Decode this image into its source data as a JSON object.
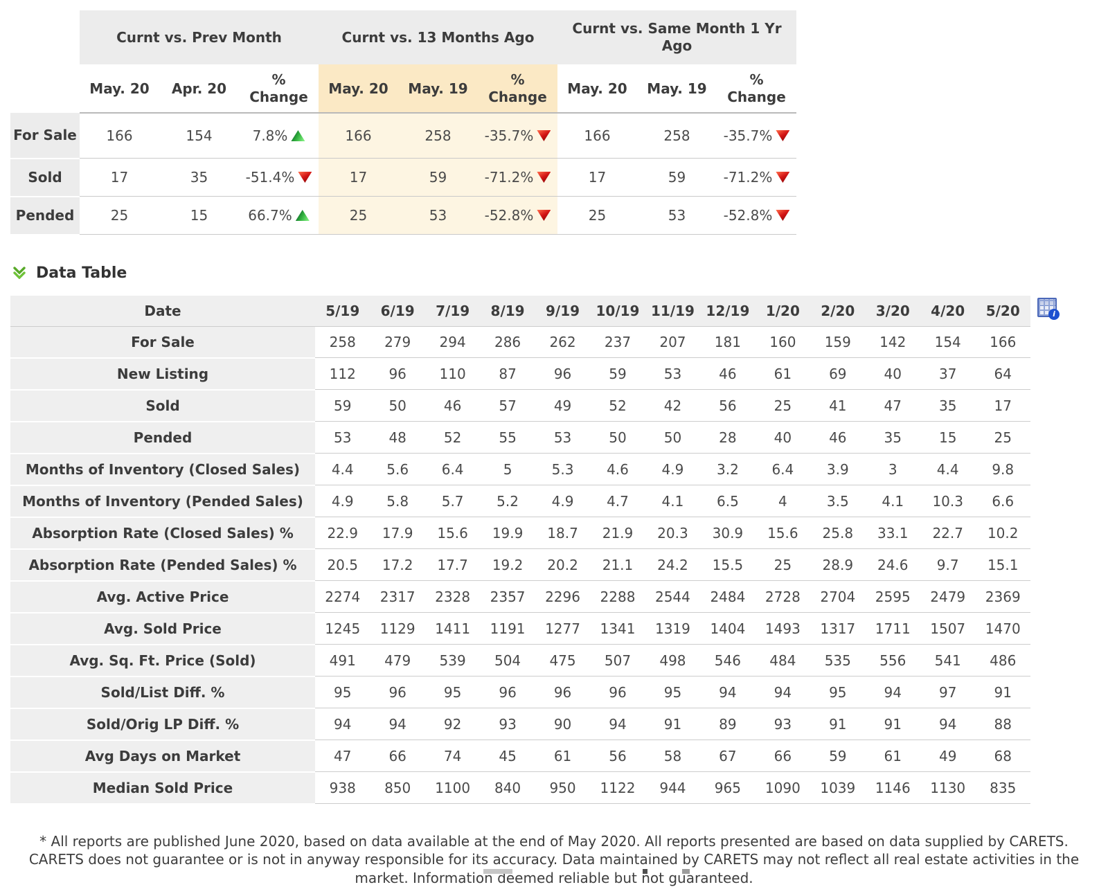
{
  "comparison_table": {
    "groups": [
      {
        "title": "Curnt vs. Prev Month",
        "columns": [
          "May. 20",
          "Apr. 20",
          "%\nChange"
        ],
        "highlight": false
      },
      {
        "title": "Curnt vs. 13 Months Ago",
        "columns": [
          "May. 20",
          "May. 19",
          "%\nChange"
        ],
        "highlight": true
      },
      {
        "title": "Curnt vs. Same Month 1 Yr\nAgo",
        "columns": [
          "May. 20",
          "May. 19",
          "%\nChange"
        ],
        "highlight": false
      }
    ],
    "rows": [
      {
        "label": "For Sale",
        "cells": [
          {
            "values": [
              "166",
              "154"
            ],
            "change": "7.8%",
            "dir": "up"
          },
          {
            "values": [
              "166",
              "258"
            ],
            "change": "-35.7%",
            "dir": "down"
          },
          {
            "values": [
              "166",
              "258"
            ],
            "change": "-35.7%",
            "dir": "down"
          }
        ]
      },
      {
        "label": "Sold",
        "cells": [
          {
            "values": [
              "17",
              "35"
            ],
            "change": "-51.4%",
            "dir": "down"
          },
          {
            "values": [
              "17",
              "59"
            ],
            "change": "-71.2%",
            "dir": "down"
          },
          {
            "values": [
              "17",
              "59"
            ],
            "change": "-71.2%",
            "dir": "down"
          }
        ]
      },
      {
        "label": "Pended",
        "cells": [
          {
            "values": [
              "25",
              "15"
            ],
            "change": "66.7%",
            "dir": "up"
          },
          {
            "values": [
              "25",
              "53"
            ],
            "change": "-52.8%",
            "dir": "down"
          },
          {
            "values": [
              "25",
              "53"
            ],
            "change": "-52.8%",
            "dir": "down"
          }
        ]
      }
    ]
  },
  "section": {
    "title": "Data Table"
  },
  "data_table": {
    "date_label": "Date",
    "dates": [
      "5/19",
      "6/19",
      "7/19",
      "8/19",
      "9/19",
      "10/19",
      "11/19",
      "12/19",
      "1/20",
      "2/20",
      "3/20",
      "4/20",
      "5/20"
    ],
    "rows": [
      {
        "label": "For Sale",
        "values": [
          258,
          279,
          294,
          286,
          262,
          237,
          207,
          181,
          160,
          159,
          142,
          154,
          166
        ]
      },
      {
        "label": "New Listing",
        "values": [
          112,
          96,
          110,
          87,
          96,
          59,
          53,
          46,
          61,
          69,
          40,
          37,
          64
        ]
      },
      {
        "label": "Sold",
        "values": [
          59,
          50,
          46,
          57,
          49,
          52,
          42,
          56,
          25,
          41,
          47,
          35,
          17
        ]
      },
      {
        "label": "Pended",
        "values": [
          53,
          48,
          52,
          55,
          53,
          50,
          50,
          28,
          40,
          46,
          35,
          15,
          25
        ]
      },
      {
        "label": "Months of Inventory (Closed Sales)",
        "values": [
          4.4,
          5.6,
          6.4,
          5,
          5.3,
          4.6,
          4.9,
          3.2,
          6.4,
          3.9,
          3,
          4.4,
          9.8
        ]
      },
      {
        "label": "Months of Inventory (Pended Sales)",
        "values": [
          4.9,
          5.8,
          5.7,
          5.2,
          4.9,
          4.7,
          4.1,
          6.5,
          4,
          3.5,
          4.1,
          10.3,
          6.6
        ]
      },
      {
        "label": "Absorption Rate (Closed Sales) %",
        "values": [
          22.9,
          17.9,
          15.6,
          19.9,
          18.7,
          21.9,
          20.3,
          30.9,
          15.6,
          25.8,
          33.1,
          22.7,
          10.2
        ]
      },
      {
        "label": "Absorption Rate (Pended Sales) %",
        "values": [
          20.5,
          17.2,
          17.7,
          19.2,
          20.2,
          21.1,
          24.2,
          15.5,
          25,
          28.9,
          24.6,
          9.7,
          15.1
        ]
      },
      {
        "label": "Avg. Active Price",
        "values": [
          2274,
          2317,
          2328,
          2357,
          2296,
          2288,
          2544,
          2484,
          2728,
          2704,
          2595,
          2479,
          2369
        ]
      },
      {
        "label": "Avg. Sold Price",
        "values": [
          1245,
          1129,
          1411,
          1191,
          1277,
          1341,
          1319,
          1404,
          1493,
          1317,
          1711,
          1507,
          1470
        ]
      },
      {
        "label": "Avg. Sq. Ft. Price (Sold)",
        "values": [
          491,
          479,
          539,
          504,
          475,
          507,
          498,
          546,
          484,
          535,
          556,
          541,
          486
        ]
      },
      {
        "label": "Sold/List Diff. %",
        "values": [
          95,
          96,
          95,
          96,
          96,
          96,
          95,
          94,
          94,
          95,
          94,
          97,
          91
        ]
      },
      {
        "label": "Sold/Orig LP Diff. %",
        "values": [
          94,
          94,
          92,
          93,
          90,
          94,
          91,
          89,
          93,
          91,
          91,
          94,
          88
        ]
      },
      {
        "label": "Avg Days on Market",
        "values": [
          47,
          66,
          74,
          45,
          61,
          56,
          58,
          67,
          66,
          59,
          61,
          49,
          68
        ]
      },
      {
        "label": "Median Sold Price",
        "values": [
          938,
          850,
          1100,
          840,
          950,
          1122,
          944,
          965,
          1090,
          1039,
          1146,
          1130,
          835
        ]
      }
    ]
  },
  "icons": {
    "collapse": "chevron-double-down",
    "table_info": "table-grid-with-info-badge",
    "up_arrow": "triangle-up",
    "down_arrow": "triangle-down"
  },
  "colors": {
    "header_gray": "#ececec",
    "label_gray": "#efefef",
    "highlight_header": "#fbe9c5",
    "highlight_cell": "#fdf5e2",
    "up_green": "#2fae3c",
    "down_red": "#d21414",
    "icon_blue": "#4a67b8",
    "chevron_green": "#57a928"
  },
  "footnote": "* All reports are published June 2020, based on data available at the end of May 2020. All reports presented are based on data supplied by CARETS. CARETS does not guarantee or is not in anyway responsible for its accuracy. Data maintained by CARETS may not reflect all real estate activities in the market. Information deemed reliable but not guaranteed."
}
